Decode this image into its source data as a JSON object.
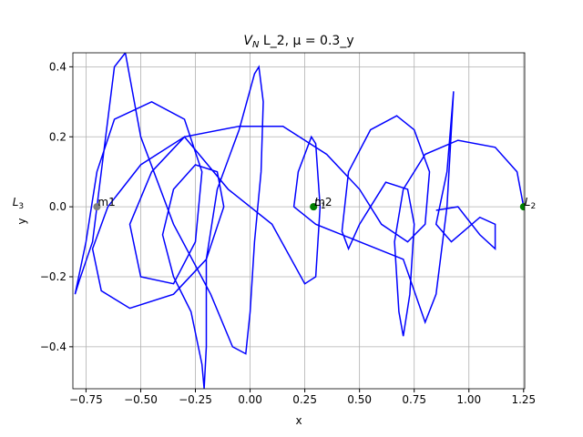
{
  "chart_data": {
    "type": "line",
    "title": {
      "main": "V",
      "sub": "N",
      "rest": " L_2, μ = 0.3_y"
    },
    "x_label": "x",
    "y_label": "y",
    "xlim": [
      -0.81,
      1.255
    ],
    "ylim": [
      -0.52,
      0.44
    ],
    "xticks": [
      {
        "value": -0.75,
        "label": "−0.75"
      },
      {
        "value": -0.5,
        "label": "−0.50"
      },
      {
        "value": -0.25,
        "label": "−0.25"
      },
      {
        "value": 0,
        "label": "0.00"
      },
      0.25,
      {
        "value": 0.5,
        "label": "0.50"
      },
      0.75,
      {
        "value": 1,
        "label": "1.00"
      },
      1.25
    ],
    "yticks": [
      {
        "value": -0.4,
        "label": "−0.4"
      },
      {
        "value": -0.2,
        "label": "−0.2"
      },
      {
        "value": 0,
        "label": "0.0"
      },
      0.2,
      0.4
    ],
    "grid": true,
    "series": [
      {
        "color": "#0000ff",
        "x": [
          1.25,
          1.22,
          1.12,
          0.95,
          0.8,
          0.7,
          0.66,
          0.68,
          0.7,
          0.73,
          0.75,
          0.72,
          0.62,
          0.5,
          0.45,
          0.42,
          0.45,
          0.55,
          0.67,
          0.75,
          0.82,
          0.8,
          0.72,
          0.6,
          0.5,
          0.35,
          0.15,
          -0.05,
          -0.3,
          -0.5,
          -0.65,
          -0.72,
          -0.68,
          -0.55,
          -0.35,
          -0.2,
          -0.12,
          -0.15,
          -0.25,
          -0.35,
          -0.4,
          -0.35,
          -0.27,
          -0.22,
          -0.21,
          -0.2,
          -0.2,
          -0.15,
          -0.05,
          0.02,
          0.04,
          0.06,
          0.05,
          0.02,
          0.0,
          -0.02,
          -0.08,
          -0.18,
          -0.35,
          -0.5,
          -0.57,
          -0.62,
          -0.68,
          -0.72,
          -0.78,
          -0.8,
          -0.75,
          -0.7,
          -0.62,
          -0.45,
          -0.3,
          -0.22,
          -0.25,
          -0.35,
          -0.5,
          -0.55,
          -0.45,
          -0.3,
          -0.1,
          0.1,
          0.25,
          0.3,
          0.32,
          0.3,
          0.28,
          0.22,
          0.2,
          0.3,
          0.5,
          0.7,
          0.8,
          0.85,
          0.9,
          0.93,
          0.9,
          0.85,
          0.92,
          1.05,
          1.12,
          1.12,
          1.05,
          0.95,
          0.85
        ],
        "y": [
          0.0,
          0.1,
          0.17,
          0.19,
          0.15,
          0.05,
          -0.1,
          -0.3,
          -0.37,
          -0.25,
          -0.05,
          0.05,
          0.07,
          -0.05,
          -0.12,
          -0.07,
          0.1,
          0.22,
          0.26,
          0.22,
          0.1,
          -0.05,
          -0.1,
          -0.05,
          0.05,
          0.15,
          0.23,
          0.23,
          0.2,
          0.12,
          0.0,
          -0.12,
          -0.24,
          -0.29,
          -0.25,
          -0.15,
          0.0,
          0.1,
          0.12,
          0.05,
          -0.08,
          -0.2,
          -0.3,
          -0.45,
          -0.52,
          -0.4,
          -0.15,
          0.05,
          0.22,
          0.38,
          0.4,
          0.3,
          0.1,
          -0.1,
          -0.3,
          -0.42,
          -0.4,
          -0.25,
          -0.05,
          0.2,
          0.44,
          0.4,
          0.1,
          -0.1,
          -0.21,
          -0.25,
          -0.1,
          0.1,
          0.25,
          0.3,
          0.25,
          0.1,
          -0.1,
          -0.22,
          -0.2,
          -0.05,
          0.1,
          0.2,
          0.05,
          -0.05,
          -0.22,
          -0.2,
          0.0,
          0.18,
          0.2,
          0.1,
          0.0,
          -0.05,
          -0.1,
          -0.15,
          -0.33,
          -0.25,
          0.0,
          0.33,
          0.1,
          -0.05,
          -0.1,
          -0.03,
          -0.05,
          -0.12,
          -0.08,
          0.0,
          -0.01
        ]
      }
    ],
    "points": [
      {
        "x": -0.7,
        "y": 0,
        "color": "#808080",
        "label": "m1"
      },
      {
        "x": 0.29,
        "y": 0,
        "color": "#808080",
        "label": "m2"
      },
      {
        "x": 0.29,
        "y": 0,
        "color": "#008000",
        "label": "L",
        "sub": "1"
      },
      {
        "x": 1.25,
        "y": 0,
        "color": "#008000",
        "label": "L",
        "sub": "2"
      },
      {
        "x": -1.09,
        "y": 0,
        "color": "#008000",
        "label": "L",
        "sub": "3"
      }
    ]
  }
}
